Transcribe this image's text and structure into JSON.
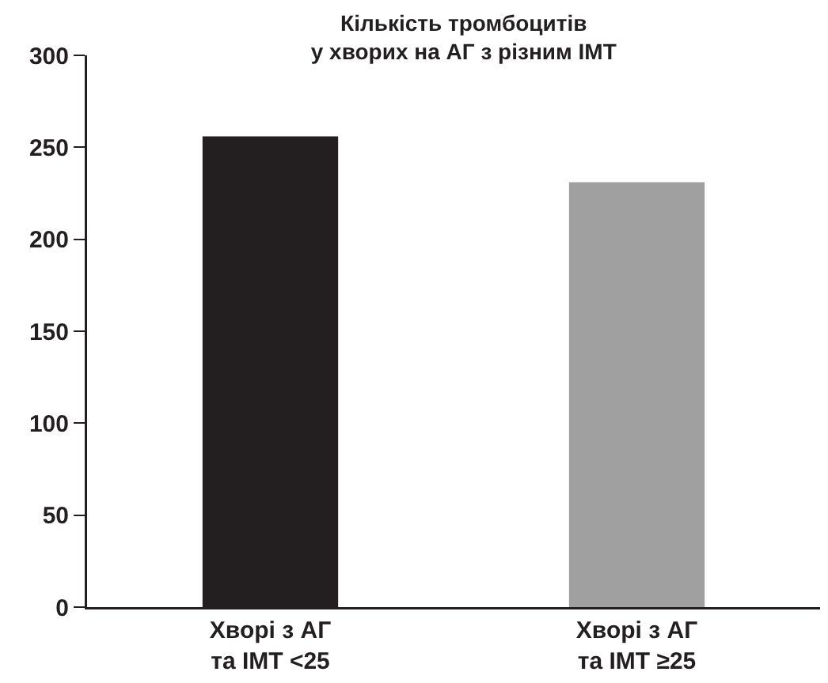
{
  "chart_data": {
    "type": "bar",
    "title": "Кількість тромбоцитів\nу хворих на АГ з різним ІМТ",
    "categories": [
      "Хворі з АГ\nта ІМТ <25",
      "Хворі з АГ\nта ІМТ ≥25"
    ],
    "values": [
      256,
      231
    ],
    "colors": [
      "#231f20",
      "#a0a0a0"
    ],
    "ylim": [
      0,
      300
    ],
    "yticks": [
      0,
      50,
      100,
      150,
      200,
      250,
      300
    ],
    "grid": false
  }
}
